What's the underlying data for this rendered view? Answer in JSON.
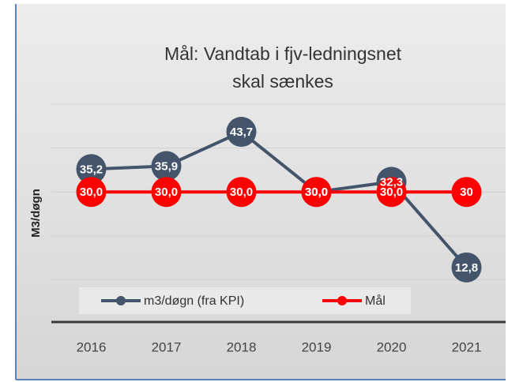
{
  "chart_data": {
    "type": "line",
    "title": [
      "Mål: Vandtab i fjv-ledningsnet",
      "skal sænkes"
    ],
    "y_label": "M3/døgn",
    "categories": [
      "2016",
      "2017",
      "2018",
      "2019",
      "2020",
      "2021"
    ],
    "series": [
      {
        "name": "m3/døgn (fra KPI)",
        "color": "#44546a",
        "values": [
          35.2,
          35.9,
          43.7,
          30.0,
          32.3,
          12.8
        ],
        "value_labels": [
          "35,2",
          "35,9",
          "43,7",
          "30,0",
          "32,3",
          "12,8"
        ]
      },
      {
        "name": "Mål",
        "color": "#ff0000",
        "values": [
          30,
          30,
          30,
          30,
          30,
          30
        ],
        "value_labels": [
          "30,0",
          "30,0",
          "30,0",
          "30,0",
          "30,0",
          "30"
        ]
      }
    ],
    "ylim": [
      0,
      50
    ],
    "yticks": [
      0,
      10,
      20,
      30,
      40,
      50
    ],
    "grid": true,
    "legend": "bottom"
  }
}
